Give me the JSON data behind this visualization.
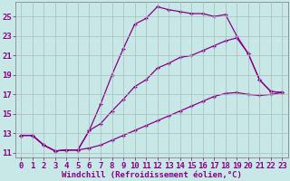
{
  "title": "",
  "xlabel": "Windchill (Refroidissement éolien,°C)",
  "background_color": "#c8e8e8",
  "grid_color": "#aabbbb",
  "line_color": "#880088",
  "xlim": [
    -0.5,
    23.5
  ],
  "ylim": [
    10.5,
    26.5
  ],
  "xticks": [
    0,
    1,
    2,
    3,
    4,
    5,
    6,
    7,
    8,
    9,
    10,
    11,
    12,
    13,
    14,
    15,
    16,
    17,
    18,
    19,
    20,
    21,
    22,
    23
  ],
  "yticks": [
    11,
    13,
    15,
    17,
    19,
    21,
    23,
    25
  ],
  "line1_x": [
    0,
    1,
    2,
    3,
    4,
    5,
    6,
    7,
    8,
    9,
    10,
    11,
    12,
    13,
    14,
    15,
    16,
    17,
    18,
    19,
    20,
    21,
    22,
    23
  ],
  "line1_y": [
    12.8,
    12.8,
    11.8,
    11.2,
    11.3,
    11.3,
    13.3,
    16.0,
    19.0,
    21.7,
    24.2,
    24.8,
    26.0,
    25.7,
    25.5,
    25.3,
    25.3,
    25.0,
    25.2,
    23.0,
    21.2,
    18.5,
    17.3,
    17.2
  ],
  "line2_x": [
    0,
    1,
    2,
    3,
    4,
    5,
    6,
    7,
    8,
    9,
    10,
    11,
    12,
    13,
    14,
    15,
    16,
    17,
    18,
    19,
    20,
    21,
    22,
    23
  ],
  "line2_y": [
    12.8,
    12.8,
    11.8,
    11.2,
    11.3,
    11.3,
    13.3,
    14.0,
    15.3,
    16.5,
    17.8,
    18.5,
    19.7,
    20.2,
    20.8,
    21.0,
    21.5,
    22.0,
    22.5,
    22.8,
    21.2,
    18.5,
    17.3,
    17.2
  ],
  "line3_x": [
    0,
    1,
    2,
    3,
    4,
    5,
    6,
    7,
    8,
    9,
    10,
    11,
    12,
    13,
    14,
    15,
    16,
    17,
    18,
    19,
    20,
    21,
    22,
    23
  ],
  "line3_y": [
    12.8,
    12.8,
    11.8,
    11.2,
    11.3,
    11.3,
    11.5,
    11.8,
    12.3,
    12.8,
    13.3,
    13.8,
    14.3,
    14.8,
    15.3,
    15.8,
    16.3,
    16.8,
    17.1,
    17.2,
    17.0,
    16.9,
    17.0,
    17.2
  ],
  "tick_fontsize": 6.5,
  "xlabel_fontsize": 6.5,
  "linewidth": 0.9,
  "markersize": 3.5,
  "markeredgewidth": 0.9
}
